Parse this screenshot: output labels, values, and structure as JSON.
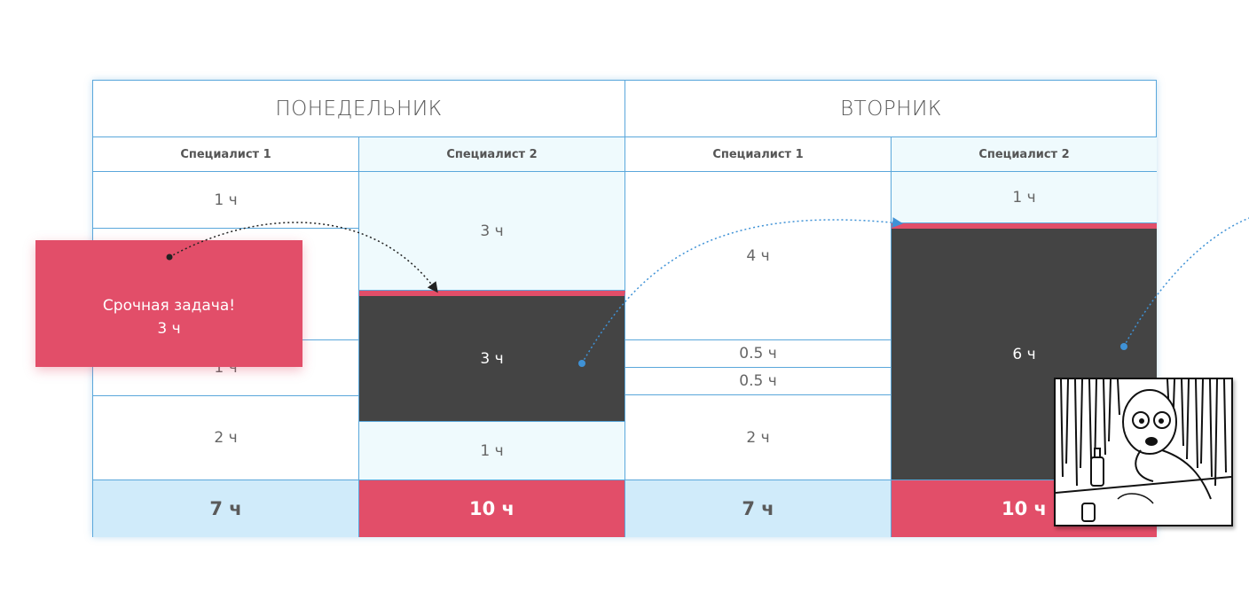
{
  "days": [
    {
      "label": "ПОНЕДЕЛЬНИК"
    },
    {
      "label": "ВТОРНИК"
    }
  ],
  "specialists": [
    "Специалист 1",
    "Специалист 2",
    "Специалист 1",
    "Специалист 2"
  ],
  "monday": {
    "spec1": {
      "task1": "1 ч",
      "task3": "1 ч",
      "task4": "2 ч",
      "total": "7 ч"
    },
    "spec2": {
      "task1": "3 ч",
      "task2": "3 ч",
      "task3": "1 ч",
      "total": "10 ч"
    }
  },
  "tuesday": {
    "spec1": {
      "task1": "4 ч",
      "task2": "0.5 ч",
      "task3": "0.5 ч",
      "task4": "2 ч",
      "total": "7 ч"
    },
    "spec2": {
      "task1": "1 ч",
      "task2": "6 ч",
      "total": "10 ч"
    }
  },
  "urgent": {
    "title": "Срочная задача!",
    "hours": "3 ч"
  },
  "colors": {
    "border": "#5aa7db",
    "urgent": "#e24e69",
    "shifted_task": "#444444",
    "total_ok": "#d0ebfa",
    "total_over": "#e24e69",
    "column_highlight": "#effafd"
  }
}
